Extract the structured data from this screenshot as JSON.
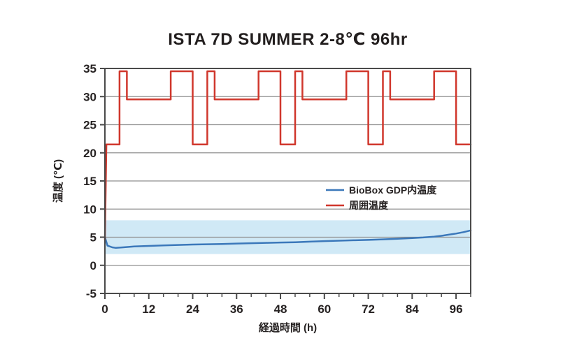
{
  "page": {
    "background": "#ffffff"
  },
  "chart_data": {
    "type": "line",
    "title": "ISTA 7D SUMMER 2-8℃ 96hr",
    "xlabel": "経過時間 (h)",
    "ylabel": "温度 (℃)",
    "xlim": [
      0,
      100
    ],
    "ylim": [
      -5,
      35
    ],
    "xticks": [
      0,
      12,
      24,
      36,
      48,
      60,
      72,
      84,
      96
    ],
    "x_minor_step": 4,
    "yticks": [
      35,
      30,
      25,
      20,
      15,
      10,
      5,
      0,
      -5
    ],
    "grid": "horizontal-only",
    "legend_position": "inside-middle-right",
    "band": {
      "from": 2,
      "to": 8,
      "color": "#d0e9f6"
    },
    "colors": {
      "grid": "#8f8f8f",
      "frame": "#4a4a4a",
      "text": "#262222"
    },
    "series": [
      {
        "name": "BioBox GDP内温度",
        "color": "#3b78ba",
        "points": [
          [
            0,
            5.0
          ],
          [
            0.7,
            3.5
          ],
          [
            2,
            3.2
          ],
          [
            3,
            3.1
          ],
          [
            5,
            3.2
          ],
          [
            8,
            3.35
          ],
          [
            12,
            3.45
          ],
          [
            16,
            3.55
          ],
          [
            20,
            3.62
          ],
          [
            24,
            3.7
          ],
          [
            28,
            3.75
          ],
          [
            32,
            3.8
          ],
          [
            36,
            3.87
          ],
          [
            40,
            3.93
          ],
          [
            44,
            4.0
          ],
          [
            48,
            4.05
          ],
          [
            52,
            4.1
          ],
          [
            56,
            4.2
          ],
          [
            60,
            4.3
          ],
          [
            64,
            4.38
          ],
          [
            68,
            4.45
          ],
          [
            72,
            4.52
          ],
          [
            76,
            4.62
          ],
          [
            80,
            4.72
          ],
          [
            84,
            4.85
          ],
          [
            87,
            4.95
          ],
          [
            90,
            5.1
          ],
          [
            92,
            5.25
          ],
          [
            94,
            5.45
          ],
          [
            96,
            5.65
          ],
          [
            98,
            5.9
          ],
          [
            100,
            6.2
          ]
        ]
      },
      {
        "name": "周囲温度",
        "color": "#d0372c",
        "points": [
          [
            0,
            4.5
          ],
          [
            0.4,
            21.5
          ],
          [
            4,
            21.5
          ],
          [
            4,
            34.5
          ],
          [
            6,
            34.5
          ],
          [
            6,
            29.5
          ],
          [
            18,
            29.5
          ],
          [
            18,
            34.5
          ],
          [
            24,
            34.5
          ],
          [
            24,
            21.5
          ],
          [
            28,
            21.5
          ],
          [
            28,
            34.5
          ],
          [
            30,
            34.5
          ],
          [
            30,
            29.5
          ],
          [
            42,
            29.5
          ],
          [
            42,
            34.5
          ],
          [
            48,
            34.5
          ],
          [
            48,
            21.5
          ],
          [
            52,
            21.5
          ],
          [
            52,
            34.5
          ],
          [
            54,
            34.5
          ],
          [
            54,
            29.5
          ],
          [
            66,
            29.5
          ],
          [
            66,
            34.5
          ],
          [
            72,
            34.5
          ],
          [
            72,
            21.5
          ],
          [
            76,
            21.5
          ],
          [
            76,
            34.5
          ],
          [
            78,
            34.5
          ],
          [
            78,
            29.5
          ],
          [
            90,
            29.5
          ],
          [
            90,
            34.5
          ],
          [
            96,
            34.5
          ],
          [
            96,
            21.5
          ],
          [
            100,
            21.5
          ]
        ]
      }
    ]
  }
}
